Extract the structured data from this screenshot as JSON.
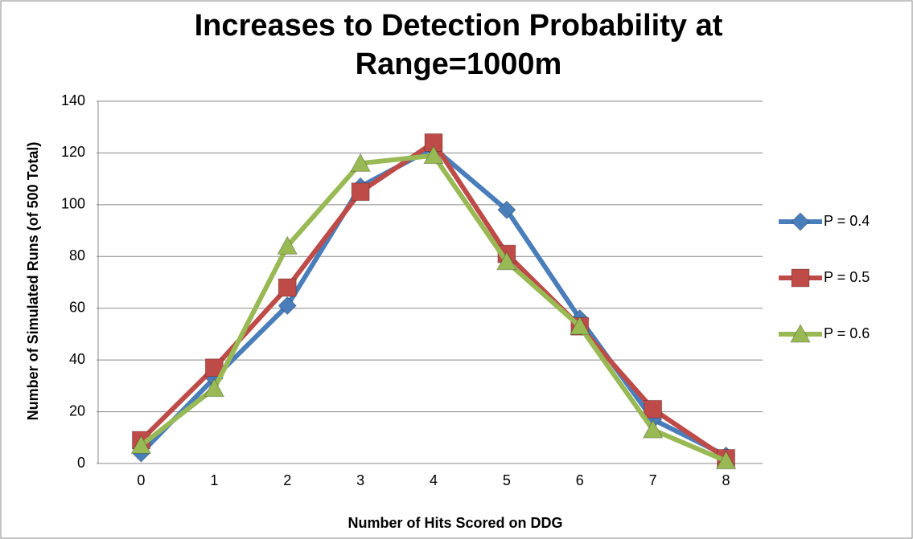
{
  "chart_data": {
    "type": "line",
    "title": "Increases to Detection Probability at Range=1000m",
    "x_label": "Number of Hits Scored on DDG",
    "y_label": "Number of Simulated Runs (of 500 Total)",
    "categories": [
      "0",
      "1",
      "2",
      "3",
      "4",
      "5",
      "6",
      "7",
      "8"
    ],
    "series": [
      {
        "name": "P = 0.4",
        "color": "#4a7ebb",
        "marker": "diamond",
        "values": [
          4,
          33,
          61,
          107,
          122,
          98,
          56,
          17,
          3
        ]
      },
      {
        "name": "P = 0.5",
        "color": "#be4b48",
        "marker": "square",
        "values": [
          9,
          37,
          68,
          105,
          124,
          81,
          53,
          21,
          2
        ]
      },
      {
        "name": "P = 0.6",
        "color": "#98b954",
        "marker": "triangle",
        "values": [
          7,
          29,
          84,
          116,
          119,
          78,
          53,
          13,
          1
        ]
      }
    ],
    "ylim": [
      0,
      140
    ],
    "yticks": [
      0,
      20,
      40,
      60,
      80,
      100,
      120,
      140
    ],
    "grid": true,
    "legend": "right"
  }
}
